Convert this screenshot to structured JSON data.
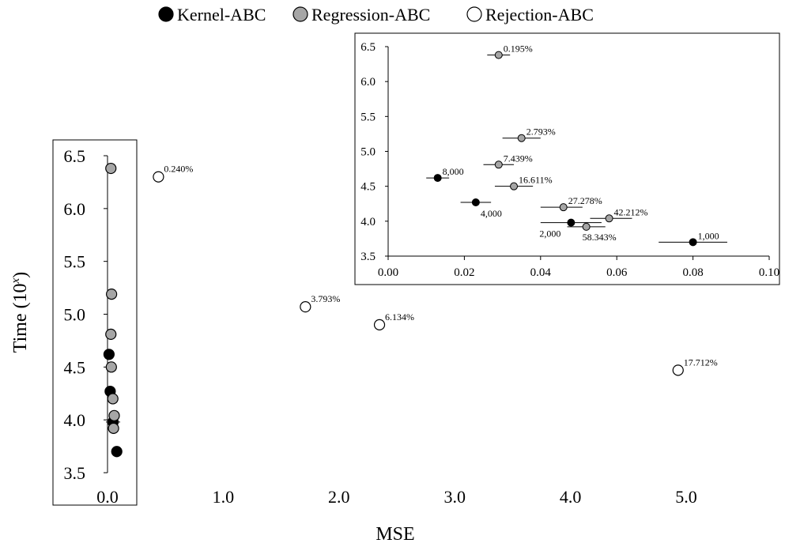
{
  "chart_data": [
    {
      "type": "scatter",
      "xlabel": "MSE",
      "ylabel_base": "Time (10",
      "ylabel_sup": "x",
      "ylabel_close": ")",
      "xlim": [
        0,
        5.0
      ],
      "ylim": [
        3.5,
        6.5
      ],
      "xticks": [
        "0.0",
        "1.0",
        "2.0",
        "3.0",
        "4.0",
        "5.0"
      ],
      "yticks": [
        "3.5",
        "4.0",
        "4.5",
        "5.0",
        "5.5",
        "6.0",
        "6.5"
      ],
      "legend": {
        "position": "top-center"
      },
      "series": [
        {
          "name": "Kernel-ABC",
          "color": "#000000",
          "points": [
            {
              "x": 0.013,
              "y": 4.62
            },
            {
              "x": 0.023,
              "y": 4.27
            },
            {
              "x": 0.048,
              "y": 3.98
            },
            {
              "x": 0.08,
              "y": 3.7
            }
          ]
        },
        {
          "name": "Regression-ABC",
          "color": "#a6a6a6",
          "points": [
            {
              "x": 0.029,
              "y": 6.38
            },
            {
              "x": 0.035,
              "y": 5.19
            },
            {
              "x": 0.029,
              "y": 4.81
            },
            {
              "x": 0.033,
              "y": 4.5
            },
            {
              "x": 0.046,
              "y": 4.2
            },
            {
              "x": 0.058,
              "y": 4.04
            },
            {
              "x": 0.052,
              "y": 3.92
            }
          ]
        },
        {
          "name": "Rejection-ABC",
          "color": "#ffffff",
          "points": [
            {
              "x": 0.44,
              "y": 6.3,
              "label": "0.240%"
            },
            {
              "x": 1.71,
              "y": 5.07,
              "label": "3.793%"
            },
            {
              "x": 2.35,
              "y": 4.9,
              "label": "6.134%"
            },
            {
              "x": 4.93,
              "y": 4.47,
              "label": "17.712%"
            }
          ]
        }
      ]
    },
    {
      "type": "scatter",
      "role": "inset",
      "xlim": [
        0,
        0.1
      ],
      "ylim": [
        3.5,
        6.5
      ],
      "xticks": [
        "0.00",
        "0.02",
        "0.04",
        "0.06",
        "0.08",
        "0.10"
      ],
      "yticks": [
        "3.5",
        "4.0",
        "4.5",
        "5.0",
        "5.5",
        "6.0",
        "6.5"
      ],
      "series": [
        {
          "name": "Kernel-ABC",
          "color": "#000000",
          "points": [
            {
              "x": 0.013,
              "y": 4.62,
              "label": "8,000",
              "xerr": [
                0.01,
                0.016
              ]
            },
            {
              "x": 0.023,
              "y": 4.27,
              "label": "4,000",
              "xerr": [
                0.019,
                0.027
              ]
            },
            {
              "x": 0.048,
              "y": 3.98,
              "label": "2,000",
              "xerr": [
                0.04,
                0.056
              ]
            },
            {
              "x": 0.08,
              "y": 3.7,
              "label": "1,000",
              "xerr": [
                0.071,
                0.089
              ]
            }
          ]
        },
        {
          "name": "Regression-ABC",
          "color": "#a6a6a6",
          "points": [
            {
              "x": 0.029,
              "y": 6.38,
              "label": "0.195%",
              "xerr": [
                0.026,
                0.032
              ]
            },
            {
              "x": 0.035,
              "y": 5.19,
              "label": "2.793%",
              "xerr": [
                0.03,
                0.04
              ]
            },
            {
              "x": 0.029,
              "y": 4.81,
              "label": "7.439%",
              "xerr": [
                0.025,
                0.033
              ]
            },
            {
              "x": 0.033,
              "y": 4.5,
              "label": "16.611%",
              "xerr": [
                0.028,
                0.038
              ]
            },
            {
              "x": 0.046,
              "y": 4.2,
              "label": "27.278%",
              "xerr": [
                0.04,
                0.051
              ]
            },
            {
              "x": 0.058,
              "y": 4.04,
              "label": "42.212%",
              "xerr": [
                0.053,
                0.064
              ]
            },
            {
              "x": 0.052,
              "y": 3.92,
              "label": "58.343%",
              "xerr": [
                0.047,
                0.057
              ]
            }
          ]
        }
      ]
    }
  ]
}
